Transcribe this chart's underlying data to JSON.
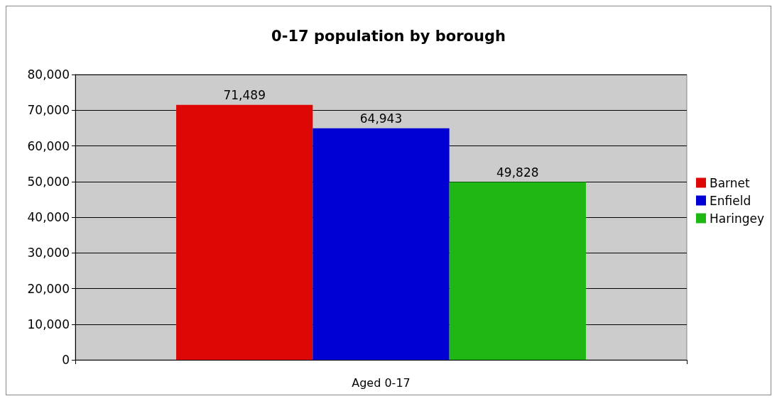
{
  "chart_data": {
    "type": "bar",
    "title": "0-17 population by borough",
    "categories": [
      "Aged 0-17"
    ],
    "series": [
      {
        "name": "Barnet",
        "color": "#dd0806",
        "values": [
          71489
        ],
        "value_labels": [
          "71,489"
        ]
      },
      {
        "name": "Enfield",
        "color": "#0000d4",
        "values": [
          64943
        ],
        "value_labels": [
          "64,943"
        ]
      },
      {
        "name": "Haringey",
        "color": "#1fb714",
        "values": [
          49828
        ],
        "value_labels": [
          "49,828"
        ]
      }
    ],
    "ylim": [
      0,
      80000
    ],
    "yticks": [
      {
        "value": 0,
        "label": "0"
      },
      {
        "value": 10000,
        "label": "10,000"
      },
      {
        "value": 20000,
        "label": "20,000"
      },
      {
        "value": 30000,
        "label": "30,000"
      },
      {
        "value": 40000,
        "label": "40,000"
      },
      {
        "value": 50000,
        "label": "50,000"
      },
      {
        "value": 60000,
        "label": "60,000"
      },
      {
        "value": 70000,
        "label": "70,000"
      },
      {
        "value": 80000,
        "label": "80,000"
      }
    ],
    "grid": "y",
    "legend": "right"
  }
}
